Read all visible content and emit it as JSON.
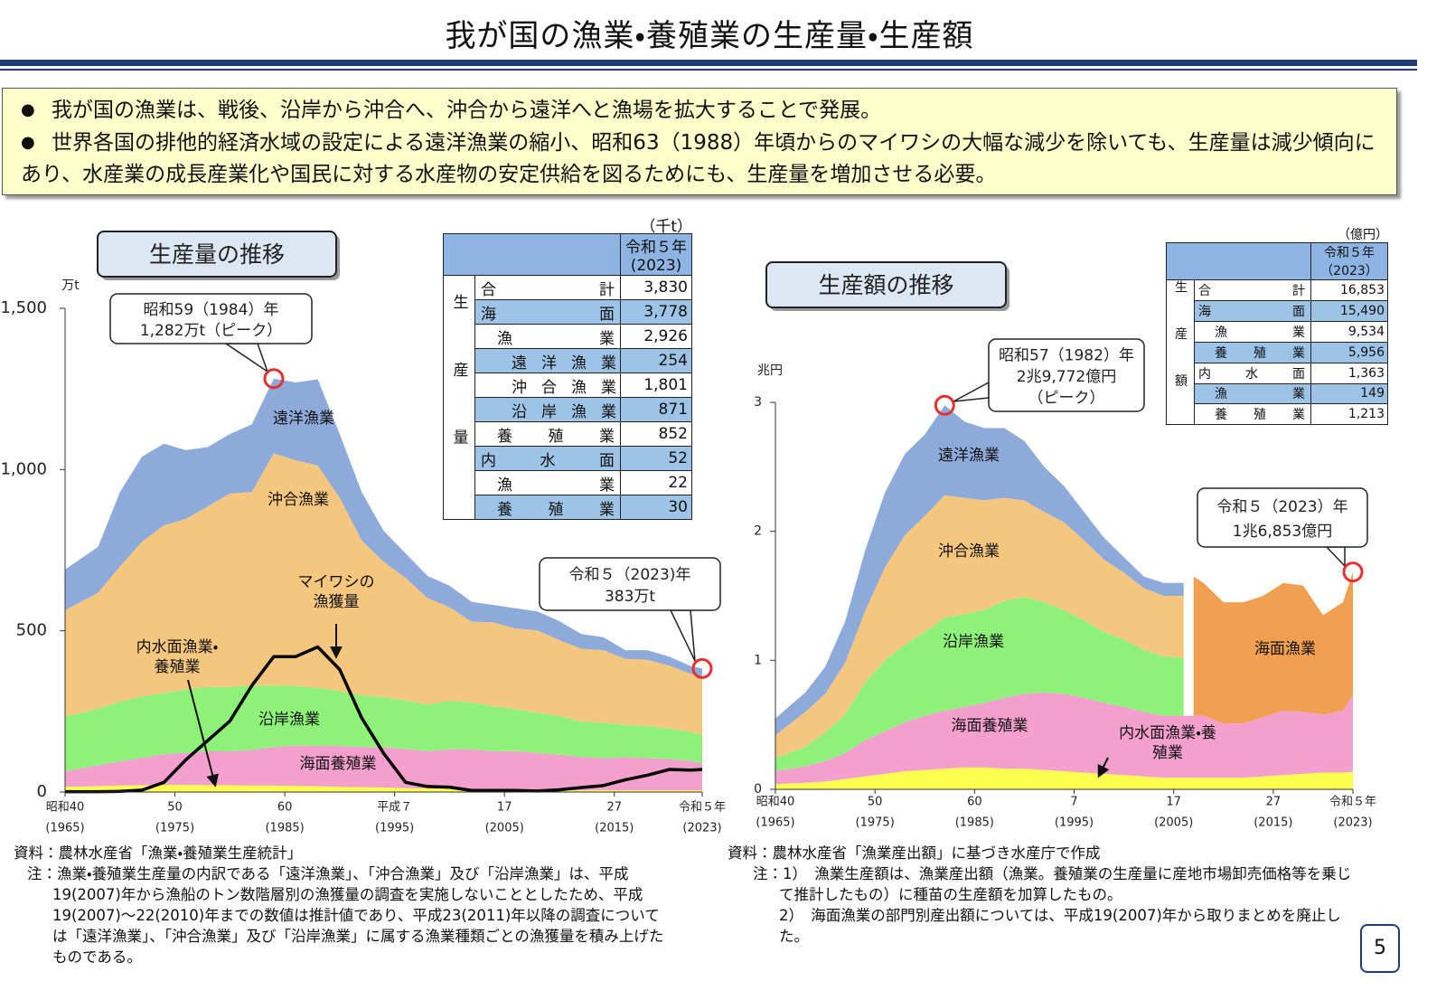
{
  "title": "我が国の漁業・養殖業の生産量・生産額",
  "bullets": [
    "我が国の漁業は、戦後、沿岸から沖合へ、沖合から遠洋へと漁場を拡大することで発展。",
    "世界各国の排他的経済水域の設定による遠洋漁業の縮小、昭和63（1988）年頃からのマイワシの大幅な減少を除いても、生産量は減少傾向にあり、水産業の成長産業化や国民に対する水産物の安定供給を図るためにも、生産量を増加させる必要。"
  ],
  "chart_data": [
    {
      "type": "area",
      "title": "生産量の推移",
      "y_unit": "万t",
      "x": [
        1965,
        1968,
        1970,
        1972,
        1974,
        1976,
        1978,
        1980,
        1982,
        1984,
        1986,
        1988,
        1990,
        1992,
        1994,
        1996,
        1998,
        2000,
        2002,
        2004,
        2006,
        2008,
        2010,
        2012,
        2014,
        2016,
        2018,
        2020,
        2022,
        2023
      ],
      "series": [
        {
          "name": "内水面漁業・養殖業",
          "color": "#ffff50",
          "values": [
            16,
            18,
            20,
            21,
            22,
            22,
            21,
            21,
            20,
            20,
            19,
            18,
            16,
            15,
            14,
            12,
            11,
            10,
            9,
            8,
            7,
            6,
            6,
            5,
            6,
            5,
            5,
            5,
            5,
            5
          ]
        },
        {
          "name": "海面養殖業",
          "color": "#f4a0cf",
          "values": [
            48,
            65,
            75,
            85,
            95,
            100,
            105,
            105,
            110,
            120,
            125,
            125,
            127,
            125,
            125,
            122,
            115,
            123,
            124,
            118,
            120,
            115,
            110,
            104,
            99,
            103,
            100,
            97,
            91,
            85
          ]
        },
        {
          "name": "沿岸漁業",
          "color": "#8ef27a",
          "values": [
            170,
            175,
            185,
            190,
            190,
            195,
            200,
            200,
            200,
            190,
            185,
            180,
            170,
            160,
            155,
            150,
            145,
            150,
            145,
            140,
            130,
            125,
            120,
            110,
            110,
            100,
            100,
            95,
            90,
            87
          ]
        },
        {
          "name": "沖合漁業",
          "color": "#f5c77e",
          "values": [
            330,
            360,
            420,
            480,
            520,
            530,
            560,
            600,
            600,
            720,
            700,
            690,
            600,
            480,
            420,
            380,
            330,
            290,
            250,
            260,
            250,
            255,
            235,
            225,
            225,
            205,
            205,
            195,
            180,
            180
          ]
        },
        {
          "name": "遠洋漁業",
          "color": "#8eaadb",
          "values": [
            126,
            142,
            230,
            264,
            253,
            213,
            184,
            184,
            210,
            232,
            241,
            267,
            197,
            150,
            96,
            76,
            69,
            67,
            62,
            54,
            63,
            59,
            59,
            46,
            40,
            27,
            30,
            28,
            24,
            26
          ]
        },
        {
          "name": "マイワシの漁獲量",
          "color": "#000000",
          "type": "line",
          "values": [
            1,
            1,
            2,
            6,
            30,
            100,
            160,
            220,
            330,
            420,
            420,
            450,
            380,
            230,
            120,
            30,
            17,
            15,
            5,
            5,
            5,
            3,
            7,
            14,
            20,
            38,
            52,
            70,
            68,
            70
          ]
        }
      ],
      "xlim": [
        1965,
        2023
      ],
      "ylim": [
        0,
        1500
      ],
      "yticks": [
        0,
        500,
        {
          "value": 1000,
          "label": "1,000"
        },
        {
          "value": 1500,
          "label": "1,500"
        }
      ],
      "xticks": [
        {
          "value": 1965,
          "label": "昭和40"
        },
        {
          "value": 1975,
          "label": "50"
        },
        {
          "value": 1985,
          "label": "60"
        },
        {
          "value": 1995,
          "label": "平成７"
        },
        {
          "value": 2005,
          "label": "17"
        },
        {
          "value": 2015,
          "label": "27"
        },
        {
          "value": 2023,
          "label": "令和５年"
        }
      ],
      "xtick_years": [
        "(1965)",
        "(1975)",
        "(1985)",
        "(1995)",
        "(2005)",
        "(2015)",
        "(2023)"
      ],
      "annotations": [
        {
          "x": 1984,
          "y": 1282,
          "lines": [
            "昭和59（1984）年",
            "1,282万t（ピーク）"
          ]
        },
        {
          "x": 2023,
          "y": 383,
          "lines": [
            "令和５（2023)年",
            "383万t"
          ]
        }
      ],
      "table": {
        "unit": "（千t）",
        "header": [
          "令和５年",
          "(2023)"
        ],
        "side_label": "生産量",
        "rows": [
          [
            "合計",
            "3,830"
          ],
          [
            "海面",
            "3,778"
          ],
          [
            "漁業",
            "2,926"
          ],
          [
            "遠洋漁業",
            "254"
          ],
          [
            "沖合漁業",
            "1,801"
          ],
          [
            "沿岸漁業",
            "871"
          ],
          [
            "養殖業",
            "852"
          ],
          [
            "内水面",
            "52"
          ],
          [
            "漁業",
            "22"
          ],
          [
            "養殖業",
            "30"
          ]
        ]
      },
      "source": "資料：農林水産省「漁業・養殖業生産統計」",
      "notes": [
        "注：漁業・養殖業生産量の内訳である「遠洋漁業」、「沖合漁業」及び「沿岸漁業」は、平成19(2007)年から漁船のトン数階層別の漁獲量の調査を実施しないこととしたため、平成19(2007)～22(2010)年までの数値は推計値であり、平成23(2011)年以降の調査については「遠洋漁業」、「沖合漁業」及び「沿岸漁業」に属する漁業種類ごとの漁獲量を積み上げたものである。"
      ]
    },
    {
      "type": "area",
      "title": "生産額の推移",
      "y_unit": "兆円",
      "x": [
        1965,
        1968,
        1970,
        1972,
        1974,
        1976,
        1978,
        1980,
        1982,
        1984,
        1986,
        1988,
        1990,
        1992,
        1994,
        1996,
        1998,
        2000,
        2002,
        2004,
        2006,
        2007,
        2008,
        2010,
        2012,
        2014,
        2016,
        2018,
        2020,
        2022,
        2023
      ],
      "series": [
        {
          "name": "内水面漁業・養殖業",
          "color": "#ffff50",
          "values": [
            0.04,
            0.05,
            0.06,
            0.08,
            0.1,
            0.12,
            0.14,
            0.15,
            0.16,
            0.17,
            0.17,
            0.16,
            0.16,
            0.15,
            0.14,
            0.13,
            0.12,
            0.11,
            0.1,
            0.09,
            0.09,
            0.09,
            0.09,
            0.09,
            0.09,
            0.1,
            0.11,
            0.12,
            0.13,
            0.13,
            0.136
          ]
        },
        {
          "name": "海面養殖業",
          "color": "#f4a0cf",
          "values": [
            0.1,
            0.13,
            0.16,
            0.2,
            0.28,
            0.33,
            0.38,
            0.42,
            0.45,
            0.47,
            0.5,
            0.55,
            0.58,
            0.6,
            0.6,
            0.58,
            0.55,
            0.53,
            0.5,
            0.48,
            0.48,
            0.48,
            0.48,
            0.42,
            0.42,
            0.46,
            0.5,
            0.48,
            0.45,
            0.48,
            0.596
          ]
        },
        {
          "name": "沿岸漁業",
          "color": "#8ef27a",
          "values": [
            0.1,
            0.15,
            0.22,
            0.3,
            0.45,
            0.55,
            0.6,
            0.65,
            0.72,
            0.72,
            0.72,
            0.75,
            0.75,
            0.7,
            0.65,
            0.6,
            0.55,
            0.52,
            0.48,
            0.46,
            0.45,
            null,
            null,
            null,
            null,
            null,
            null,
            null,
            null,
            null,
            null
          ]
        },
        {
          "name": "沖合漁業",
          "color": "#f5c77e",
          "values": [
            0.18,
            0.27,
            0.3,
            0.4,
            0.55,
            0.72,
            0.85,
            0.9,
            0.95,
            0.9,
            0.85,
            0.8,
            0.75,
            0.7,
            0.68,
            0.62,
            0.56,
            0.52,
            0.48,
            0.47,
            0.48,
            null,
            null,
            null,
            null,
            null,
            null,
            null,
            null,
            null,
            null
          ]
        },
        {
          "name": "遠洋漁業",
          "color": "#8eaadb",
          "values": [
            0.13,
            0.15,
            0.21,
            0.32,
            0.47,
            0.58,
            0.63,
            0.63,
            0.697,
            0.59,
            0.56,
            0.54,
            0.46,
            0.35,
            0.28,
            0.22,
            0.17,
            0.12,
            0.09,
            0.1,
            0.1,
            null,
            null,
            null,
            null,
            null,
            null,
            null,
            null,
            null,
            null
          ]
        },
        {
          "name": "海面漁業",
          "color": "#f0a050",
          "values": [
            null,
            null,
            null,
            null,
            null,
            null,
            null,
            null,
            null,
            null,
            null,
            null,
            null,
            null,
            null,
            null,
            null,
            null,
            null,
            null,
            null,
            1.08,
            1.03,
            0.94,
            0.94,
            0.94,
            0.99,
            0.98,
            0.77,
            0.84,
            0.953
          ]
        }
      ],
      "xlim": [
        1965,
        2023
      ],
      "ylim": [
        0,
        3
      ],
      "yticks": [
        0,
        1,
        2,
        3
      ],
      "xticks": [
        {
          "value": 1965,
          "label": "昭和40"
        },
        {
          "value": 1975,
          "label": "50"
        },
        {
          "value": 1985,
          "label": "60"
        },
        {
          "value": 1995,
          "label": "7"
        },
        {
          "value": 2005,
          "label": "17"
        },
        {
          "value": 2015,
          "label": "27"
        },
        {
          "value": 2023,
          "label": "令和５年"
        }
      ],
      "xtick_years": [
        "(1965)",
        "(1975)",
        "(1985)",
        "(1995)",
        "(2005)",
        "(2015)",
        "(2023)"
      ],
      "annotations": [
        {
          "x": 1982,
          "y": 2.9772,
          "lines": [
            "昭和57（1982）年",
            "2兆9,772億円",
            "（ピーク）"
          ]
        },
        {
          "x": 2023,
          "y": 1.6853,
          "lines": [
            "令和５（2023）年",
            "1兆6,853億円"
          ]
        }
      ],
      "table": {
        "unit": "（億円）",
        "header": [
          "令和５年",
          "（2023）"
        ],
        "side_label": "生産額",
        "rows": [
          [
            "合計",
            "16,853"
          ],
          [
            "海面",
            "15,490"
          ],
          [
            "漁業",
            "9,534"
          ],
          [
            "養殖業",
            "5,956"
          ],
          [
            "内水面",
            "1,363"
          ],
          [
            "漁業",
            "149"
          ],
          [
            "養殖業",
            "1,213"
          ]
        ]
      },
      "source": "資料：農林水産省「漁業産出額」に基づき水産庁で作成",
      "notes": [
        "注：1）　漁業生産額は、漁業産出額（漁業。養殖業の生産量に産地市場卸売価格等を乗じて推計したもの）に種苗の生産額を加算したもの。",
        "2）　海面漁業の部門別産出額については、平成19(2007)年から取りまとめを廃止した。"
      ]
    }
  ],
  "page_number": "5"
}
